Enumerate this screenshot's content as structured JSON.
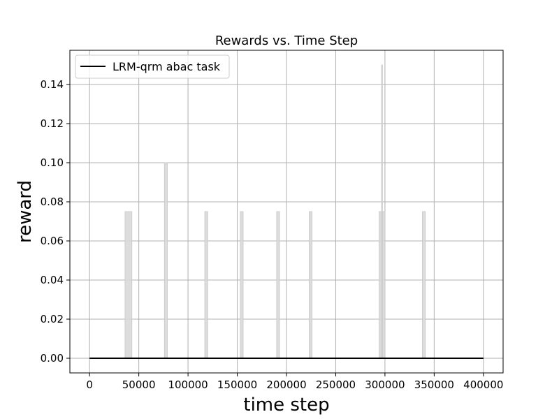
{
  "chart_data": {
    "type": "line",
    "title": "Rewards vs. Time Step",
    "xlabel": "time step",
    "ylabel": "reward",
    "xlim": [
      -20000,
      420000
    ],
    "ylim": [
      -0.0075,
      0.1575
    ],
    "xticks": [
      0,
      50000,
      100000,
      150000,
      200000,
      250000,
      300000,
      350000,
      400000
    ],
    "xtick_labels": [
      "0",
      "50000",
      "100000",
      "150000",
      "200000",
      "250000",
      "300000",
      "350000",
      "400000"
    ],
    "yticks": [
      0.0,
      0.02,
      0.04,
      0.06,
      0.08,
      0.1,
      0.12,
      0.14
    ],
    "ytick_labels": [
      "0.00",
      "0.02",
      "0.04",
      "0.06",
      "0.08",
      "0.10",
      "0.12",
      "0.14"
    ],
    "grid": true,
    "legend": {
      "placement": "upper-left",
      "entries": [
        "LRM-qrm abac task"
      ]
    },
    "series": [
      {
        "name": "LRM-qrm abac task",
        "color": "#000000",
        "x": [
          0,
          400000
        ],
        "y": [
          0,
          0
        ]
      }
    ],
    "bands": [
      {
        "x0": 36000,
        "x1": 43000,
        "upper": 0.075
      },
      {
        "x0": 76000,
        "x1": 79000,
        "upper": 0.1
      },
      {
        "x0": 117000,
        "x1": 120000,
        "upper": 0.075
      },
      {
        "x0": 153000,
        "x1": 156000,
        "upper": 0.075
      },
      {
        "x0": 190000,
        "x1": 193000,
        "upper": 0.075
      },
      {
        "x0": 223000,
        "x1": 226000,
        "upper": 0.075
      },
      {
        "x0": 294000,
        "x1": 300000,
        "upper": 0.075
      },
      {
        "x0": 296500,
        "x1": 297500,
        "upper": 0.15
      },
      {
        "x0": 338000,
        "x1": 341000,
        "upper": 0.075
      }
    ],
    "band_color": "#d9d9d9"
  }
}
